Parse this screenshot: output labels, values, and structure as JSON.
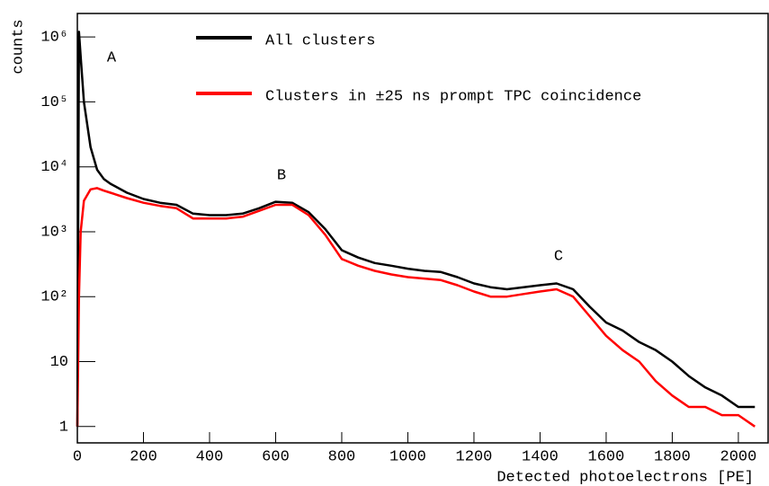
{
  "chart_data": {
    "type": "line",
    "log_y": true,
    "x_label": "Detected photoelectrons [PE]",
    "y_label": "counts",
    "annotations": [
      "A",
      "B",
      "C"
    ],
    "x": [
      0,
      5,
      10,
      20,
      40,
      60,
      80,
      100,
      150,
      200,
      250,
      300,
      350,
      400,
      450,
      500,
      550,
      600,
      650,
      700,
      750,
      800,
      850,
      900,
      950,
      1000,
      1050,
      1100,
      1150,
      1200,
      1250,
      1300,
      1350,
      1400,
      1450,
      1500,
      1550,
      1600,
      1650,
      1700,
      1750,
      1800,
      1850,
      1900,
      1950,
      2000,
      2050
    ],
    "series": [
      {
        "name": "All clusters",
        "color": "#000000",
        "values": [
          1,
          1200000,
          500000,
          100000,
          20000,
          9000,
          6500,
          5500,
          4000,
          3200,
          2800,
          2600,
          1900,
          1800,
          1800,
          1900,
          2300,
          2900,
          2800,
          2000,
          1100,
          520,
          400,
          330,
          300,
          270,
          250,
          240,
          200,
          160,
          140,
          130,
          140,
          150,
          160,
          130,
          70,
          40,
          30,
          20,
          15,
          10,
          6,
          4,
          3,
          2,
          2
        ]
      },
      {
        "name": "Clusters in ±25 ns prompt TPC coincidence",
        "color": "#ff0000",
        "values": [
          1,
          100,
          1000,
          3000,
          4500,
          4700,
          4300,
          4000,
          3300,
          2800,
          2500,
          2300,
          1600,
          1600,
          1600,
          1700,
          2100,
          2600,
          2600,
          1800,
          900,
          380,
          300,
          250,
          220,
          200,
          190,
          180,
          150,
          120,
          100,
          100,
          110,
          120,
          130,
          100,
          50,
          25,
          15,
          10,
          5,
          3,
          2,
          2,
          1.5,
          1.5,
          1
        ]
      }
    ],
    "xlim": [
      0,
      2090
    ],
    "ylim": [
      0.56,
      2300000
    ],
    "xticks": [
      0,
      200,
      400,
      600,
      800,
      1000,
      1200,
      1400,
      1600,
      1800,
      2000
    ],
    "yticks": [
      1,
      10,
      {
        "value": 100,
        "label": "10²"
      },
      {
        "value": 1000,
        "label": "10³"
      },
      {
        "value": 10000,
        "label": "10⁴"
      },
      {
        "value": 100000,
        "label": "10⁵"
      },
      {
        "value": 1000000,
        "label": "10⁶"
      }
    ]
  }
}
